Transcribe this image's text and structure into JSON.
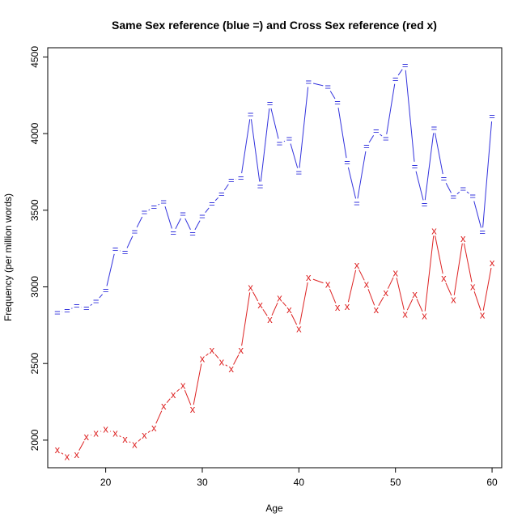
{
  "chart_data": {
    "type": "line",
    "title": "Same Sex reference (blue =) and Cross Sex reference (red x)",
    "xlabel": "Age",
    "ylabel": "Frequency (per million words)",
    "xlim": [
      14,
      61
    ],
    "ylim": [
      1820,
      4560
    ],
    "xticks": [
      20,
      30,
      40,
      50,
      60
    ],
    "yticks": [
      2000,
      2500,
      3000,
      3500,
      4000,
      4500
    ],
    "grid": false,
    "series": [
      {
        "marker": "=",
        "color": "#3333dd",
        "x": [
          15,
          16,
          17,
          18,
          19,
          20,
          21,
          22,
          23,
          24,
          25,
          26,
          27,
          28,
          29,
          30,
          31,
          32,
          33,
          34,
          35,
          36,
          37,
          38,
          39,
          40,
          41,
          43,
          44,
          45,
          46,
          47,
          48,
          49,
          50,
          51,
          52,
          53,
          54,
          55,
          56,
          57,
          58,
          59,
          60
        ],
        "y": [
          2830,
          2845,
          2875,
          2860,
          2905,
          2975,
          3245,
          3225,
          3360,
          3485,
          3520,
          3555,
          3350,
          3475,
          3345,
          3460,
          3540,
          3605,
          3695,
          3710,
          4125,
          3655,
          4195,
          3935,
          3965,
          3745,
          4335,
          4305,
          4200,
          3810,
          3545,
          3915,
          4015,
          3965,
          4355,
          4445,
          3785,
          3535,
          4035,
          3705,
          3585,
          3640,
          3590,
          3355,
          4110
        ]
      },
      {
        "marker": "x",
        "color": "#dd2222",
        "x": [
          15,
          16,
          17,
          18,
          19,
          20,
          21,
          22,
          23,
          24,
          25,
          26,
          27,
          28,
          29,
          30,
          31,
          32,
          33,
          34,
          35,
          36,
          37,
          38,
          39,
          40,
          41,
          43,
          44,
          45,
          46,
          47,
          48,
          49,
          50,
          51,
          52,
          53,
          54,
          55,
          56,
          57,
          58,
          59,
          60
        ],
        "y": [
          1935,
          1890,
          1905,
          2020,
          2045,
          2070,
          2045,
          2005,
          1970,
          2030,
          2080,
          2220,
          2295,
          2355,
          2200,
          2530,
          2585,
          2510,
          2465,
          2585,
          2995,
          2880,
          2785,
          2925,
          2850,
          2725,
          3060,
          3015,
          2865,
          2870,
          3140,
          3015,
          2850,
          2960,
          3090,
          2820,
          2950,
          2810,
          3365,
          3055,
          2915,
          3315,
          3000,
          2815,
          3155
        ]
      }
    ]
  }
}
